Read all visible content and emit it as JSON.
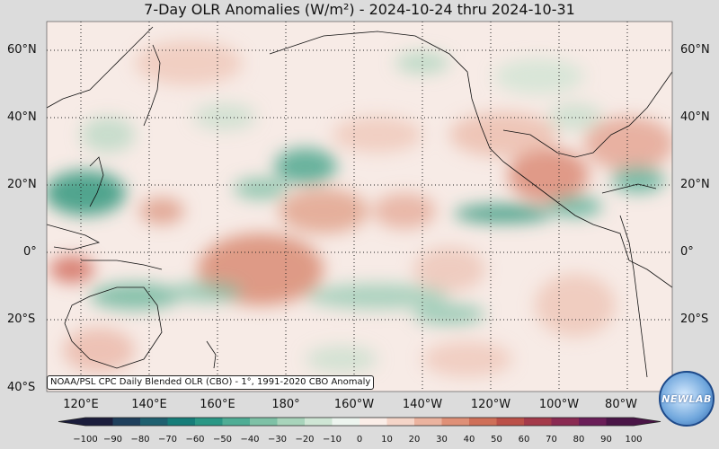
{
  "title": "7-Day OLR Anomalies (W/m²) - 2024-10-24 thru 2024-10-31",
  "credit": "NOAA/PSL CPC Daily Blended OLR (CBO) - 1°, 1991-2020 CBO Anomaly",
  "logo_text": "NEWLAB",
  "lat_labels": [
    "60°N",
    "40°N",
    "20°N",
    "0°",
    "20°S",
    "40°S"
  ],
  "lon_labels": [
    "120°E",
    "140°E",
    "160°E",
    "180°",
    "160°W",
    "140°W",
    "120°W",
    "100°W",
    "80°W"
  ],
  "colorbar": {
    "ticks": [
      "−100",
      "−90",
      "−80",
      "−70",
      "−60",
      "−50",
      "−40",
      "−30",
      "−20",
      "−10",
      "0",
      "10",
      "20",
      "30",
      "40",
      "50",
      "60",
      "70",
      "80",
      "90",
      "100"
    ],
    "colors": [
      "#1b1d3c",
      "#1f3f5c",
      "#1f6070",
      "#167d79",
      "#2a9785",
      "#4fad95",
      "#7ec1a6",
      "#a8d4bb",
      "#cfe6d5",
      "#edf5ef",
      "#fbeee8",
      "#f5d5c8",
      "#ebb39f",
      "#df9077",
      "#cf6f58",
      "#bb5048",
      "#a43a4a",
      "#8a2a52",
      "#6a1e58",
      "#4a1547"
    ]
  }
}
